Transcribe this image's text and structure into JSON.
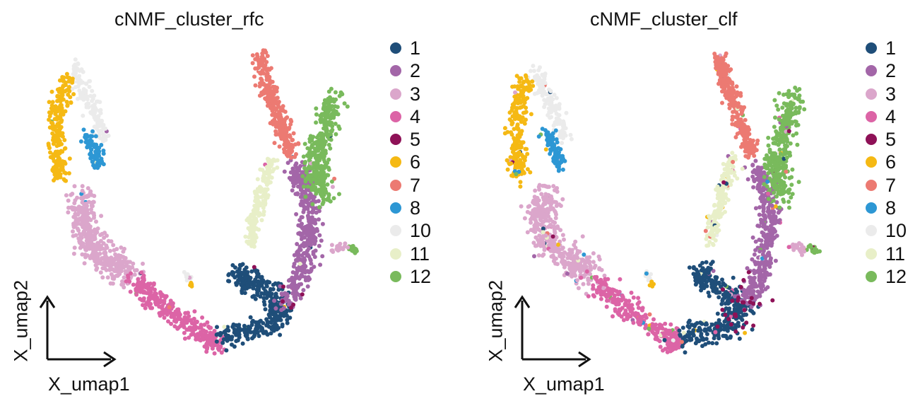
{
  "panels": [
    {
      "title": "cNMF_cluster_rfc",
      "xlabel": "X_umap1",
      "ylabel": "X_umap2"
    },
    {
      "title": "cNMF_cluster_clf",
      "xlabel": "X_umap1",
      "ylabel": "X_umap2"
    }
  ],
  "legend": [
    {
      "label": "1",
      "color": "#1f4e79"
    },
    {
      "label": "2",
      "color": "#a366a8"
    },
    {
      "label": "3",
      "color": "#dba6cb"
    },
    {
      "label": "4",
      "color": "#dc64a6"
    },
    {
      "label": "5",
      "color": "#8e1157"
    },
    {
      "label": "6",
      "color": "#f5b914"
    },
    {
      "label": "7",
      "color": "#ec7a72"
    },
    {
      "label": "8",
      "color": "#2d97d4"
    },
    {
      "label": "10",
      "color": "#ebebeb"
    },
    {
      "label": "11",
      "color": "#e8efc8"
    },
    {
      "label": "12",
      "color": "#79ba5c"
    }
  ],
  "chart_data": [
    {
      "type": "scatter",
      "title": "cNMF_cluster_rfc",
      "xlabel": "X_umap1",
      "ylabel": "X_umap2",
      "legend_position": "right",
      "grid": false,
      "series": [
        {
          "name": "1"
        },
        {
          "name": "2"
        },
        {
          "name": "3"
        },
        {
          "name": "4"
        },
        {
          "name": "5"
        },
        {
          "name": "6"
        },
        {
          "name": "7"
        },
        {
          "name": "8"
        },
        {
          "name": "10"
        },
        {
          "name": "11"
        },
        {
          "name": "12"
        }
      ]
    },
    {
      "type": "scatter",
      "title": "cNMF_cluster_clf",
      "xlabel": "X_umap1",
      "ylabel": "X_umap2",
      "legend_position": "right",
      "grid": false,
      "series": [
        {
          "name": "1"
        },
        {
          "name": "2"
        },
        {
          "name": "3"
        },
        {
          "name": "4"
        },
        {
          "name": "5"
        },
        {
          "name": "6"
        },
        {
          "name": "7"
        },
        {
          "name": "8"
        },
        {
          "name": "10"
        },
        {
          "name": "11"
        },
        {
          "name": "12"
        }
      ]
    }
  ]
}
